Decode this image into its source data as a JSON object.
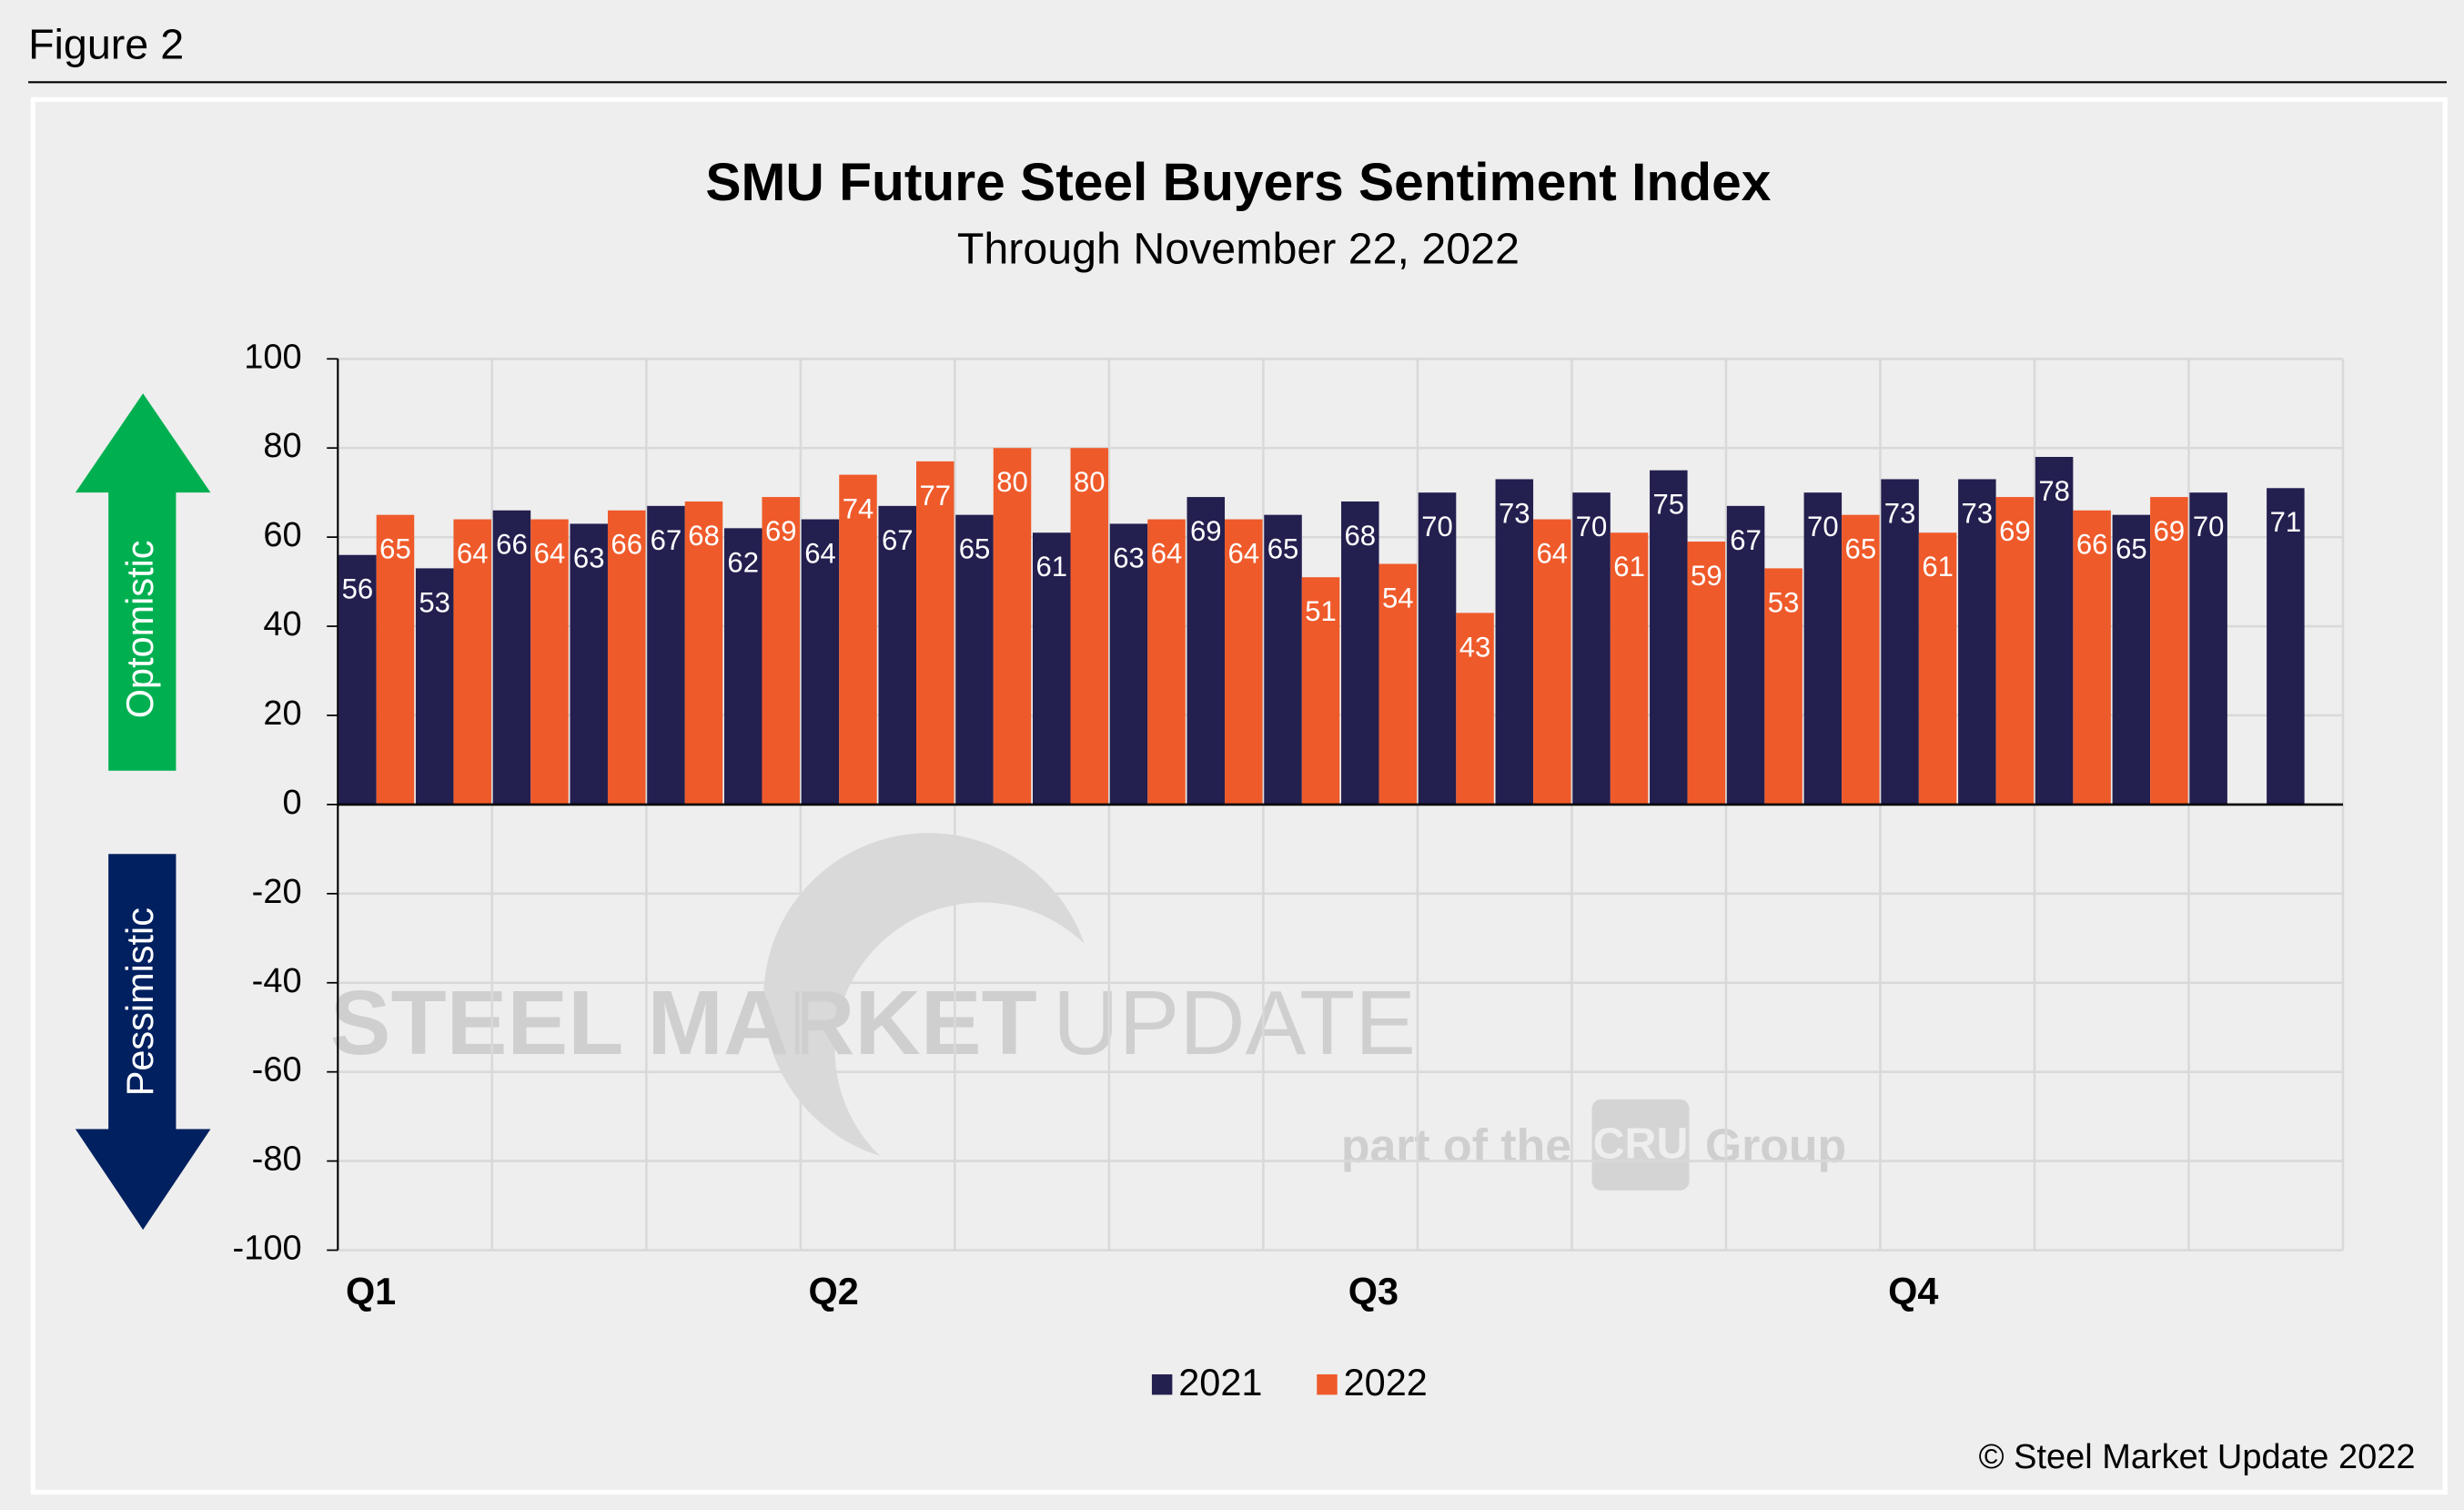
{
  "figure_label": "Figure 2",
  "copyright": "© Steel Market Update 2022",
  "watermark": {
    "brand_bold": "STEEL MARKET",
    "brand_light": "UPDATE",
    "tagline_start": "part of the",
    "tagline_logo": "CRU",
    "tagline_end": "Group"
  },
  "chart_data": {
    "type": "bar",
    "title": "SMU Future Steel Buyers Sentiment Index",
    "subtitle": "Through November 22, 2022",
    "annotations": {
      "up": "Optomistic",
      "down": "Pessimistic"
    },
    "categories": [
      "Q1",
      null,
      null,
      null,
      null,
      null,
      "Q2",
      null,
      null,
      null,
      null,
      null,
      null,
      "Q3",
      null,
      null,
      null,
      null,
      null,
      null,
      "Q4",
      null,
      null,
      null,
      null,
      null
    ],
    "series": [
      {
        "name": "2021",
        "color": "#231f4f",
        "values": [
          56,
          53,
          66,
          63,
          67,
          62,
          64,
          67,
          65,
          61,
          63,
          69,
          65,
          68,
          70,
          73,
          70,
          75,
          67,
          70,
          73,
          73,
          78,
          65,
          70,
          71
        ]
      },
      {
        "name": "2022",
        "color": "#ef5a2a",
        "values": [
          65,
          64,
          64,
          66,
          68,
          69,
          74,
          77,
          80,
          80,
          64,
          64,
          51,
          54,
          43,
          64,
          61,
          59,
          53,
          65,
          61,
          69,
          66,
          69,
          null,
          null
        ]
      }
    ],
    "ylim": [
      -100,
      100
    ],
    "yticks": [
      -100,
      -80,
      -60,
      -40,
      -20,
      0,
      20,
      40,
      60,
      80,
      100
    ],
    "grid": true,
    "legend": "bottom",
    "data_labels": true
  }
}
